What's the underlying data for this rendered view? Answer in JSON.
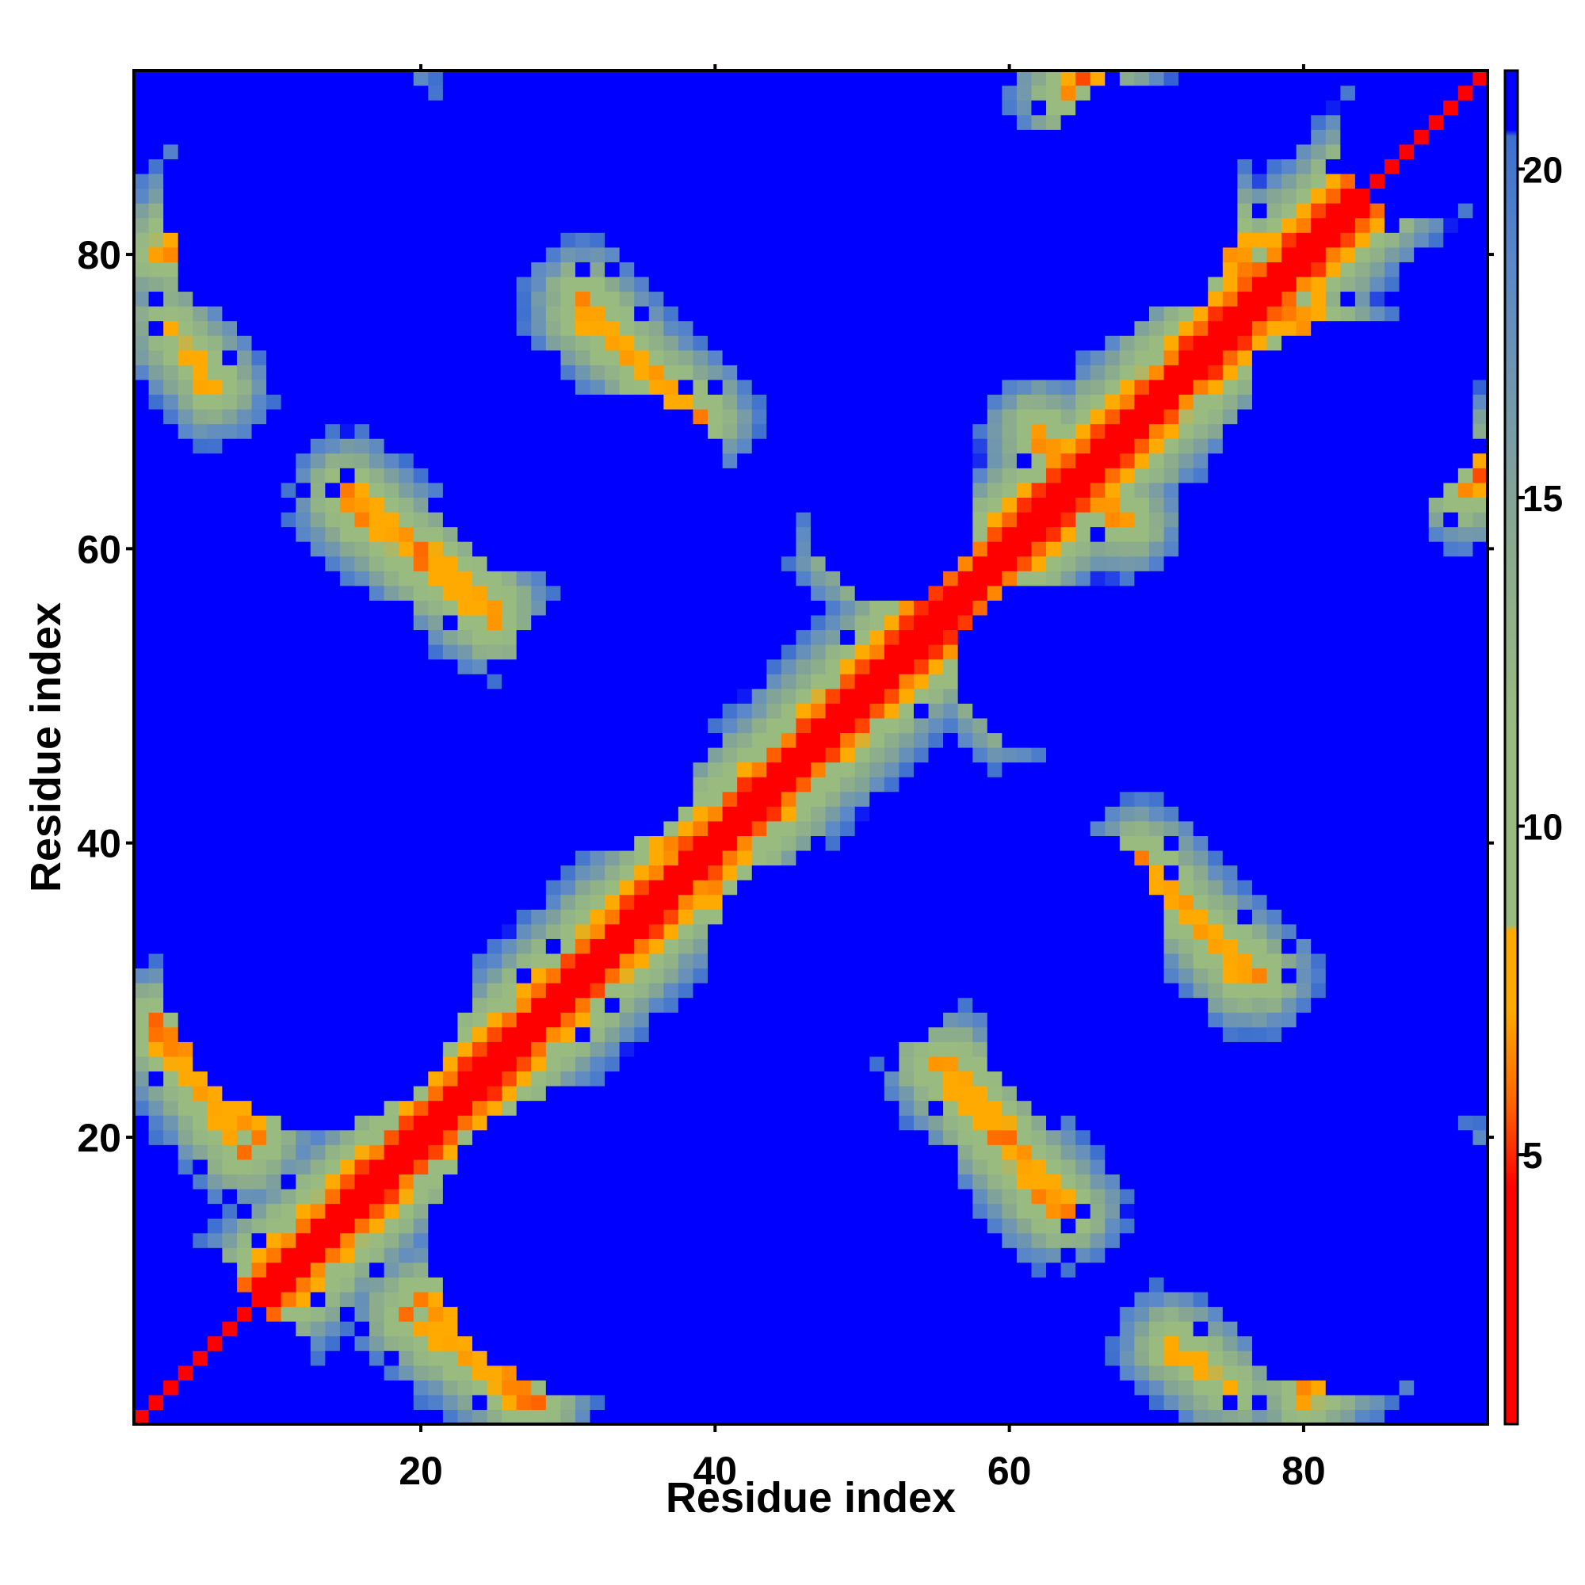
{
  "chart_data": {
    "type": "heatmap",
    "title": "",
    "xlabel": "Residue index",
    "ylabel": "Residue index",
    "n_residues": 92,
    "xlim": [
      1,
      92
    ],
    "ylim": [
      1,
      92
    ],
    "x_ticks": [
      20,
      40,
      60,
      80
    ],
    "y_ticks": [
      20,
      40,
      60,
      80
    ],
    "colorbar": {
      "ticks": [
        5,
        10,
        15,
        20
      ],
      "range": [
        0.9,
        21.5
      ],
      "stops": [
        {
          "value": 0.9,
          "color": "#ff0000"
        },
        {
          "value": 4.5,
          "color": "#ff0000"
        },
        {
          "value": 5.8,
          "color": "#ff6600"
        },
        {
          "value": 7.2,
          "color": "#ffaa00"
        },
        {
          "value": 8.4,
          "color": "#ffaa00"
        },
        {
          "value": 8.5,
          "color": "#99bb80"
        },
        {
          "value": 11.5,
          "color": "#99bb80"
        },
        {
          "value": 14.5,
          "color": "#88a890"
        },
        {
          "value": 18.5,
          "color": "#5b88c8"
        },
        {
          "value": 20.5,
          "color": "#3d6fd0"
        },
        {
          "value": 20.6,
          "color": "#0000ff"
        },
        {
          "value": 21.5,
          "color": "#0000ff"
        }
      ]
    },
    "contact_bands": [
      {
        "x1": 1,
        "y1": 1,
        "x2": 92,
        "y2": 92,
        "min": 1.0
      },
      {
        "x1": 2,
        "y1": 28,
        "x2": 9,
        "y2": 20,
        "min": 6.5
      },
      {
        "x1": 11,
        "y1": 89,
        "x2": 15,
        "y2": 93,
        "min": 6.5
      },
      {
        "x1": 3,
        "y1": 80,
        "x2": 7,
        "y2": 85,
        "min": 6.5
      },
      {
        "x1": 3,
        "y1": 75,
        "x2": 6,
        "y2": 71,
        "min": 7.0
      },
      {
        "x1": 15,
        "y1": 63,
        "x2": 25,
        "y2": 55,
        "min": 6.5
      },
      {
        "x1": 31,
        "y1": 77,
        "x2": 38,
        "y2": 69,
        "min": 6.5
      },
      {
        "x1": 19,
        "y1": 8,
        "x2": 27,
        "y2": 2,
        "min": 6.5
      },
      {
        "x1": 34,
        "y1": 42,
        "x2": 42,
        "y2": 35,
        "min": 6.5
      },
      {
        "x1": 45,
        "y1": 47,
        "x2": 47,
        "y2": 45,
        "min": 7.0
      },
      {
        "x1": 49,
        "y1": 60,
        "x2": 56,
        "y2": 53,
        "min": 6.8
      },
      {
        "x1": 56,
        "y1": 25,
        "x2": 64,
        "y2": 15,
        "min": 6.5
      },
      {
        "x1": 62,
        "y1": 67,
        "x2": 68,
        "y2": 62,
        "min": 6.5
      },
      {
        "x1": 64,
        "y1": 93,
        "x2": 78,
        "y2": 78,
        "min": 6.0
      },
      {
        "x1": 77,
        "y1": 78,
        "x2": 91,
        "y2": 64,
        "min": 6.0
      },
      {
        "x1": 69,
        "y1": 39,
        "x2": 76,
        "y2": 31,
        "min": 6.5
      },
      {
        "x1": 84,
        "y1": 12,
        "x2": 91,
        "y2": 17,
        "min": 6.8
      },
      {
        "x1": 80,
        "y1": 2,
        "x2": 85,
        "y2": 6,
        "min": 6.8
      }
    ],
    "void_regions": [
      {
        "cx": 15,
        "cy": 81,
        "rx": 10,
        "ry": 7
      },
      {
        "cx": 61,
        "cy": 81,
        "rx": 10,
        "ry": 7
      },
      {
        "cx": 33,
        "cy": 64,
        "rx": 7,
        "ry": 6
      },
      {
        "cx": 84,
        "cy": 69,
        "rx": 7,
        "ry": 6
      },
      {
        "cx": 31,
        "cy": 46,
        "rx": 7,
        "ry": 6
      },
      {
        "cx": 16,
        "cy": 53,
        "rx": 4,
        "ry": 3.5
      },
      {
        "cx": 63,
        "cy": 52,
        "rx": 6,
        "ry": 5
      },
      {
        "cx": 84,
        "cy": 50,
        "rx": 6,
        "ry": 5
      },
      {
        "cx": 12,
        "cy": 32,
        "rx": 7,
        "ry": 6
      },
      {
        "cx": 58,
        "cy": 37,
        "rx": 7,
        "ry": 6
      },
      {
        "cx": 49,
        "cy": 30,
        "rx": 6,
        "ry": 4
      },
      {
        "cx": 31,
        "cy": 13,
        "rx": 9,
        "ry": 9
      },
      {
        "cx": 52,
        "cy": 13,
        "rx": 5,
        "ry": 5
      },
      {
        "cx": 84,
        "cy": 13,
        "rx": 9,
        "ry": 9
      },
      {
        "cx": 65,
        "cy": 27,
        "rx": 6,
        "ry": 5
      },
      {
        "cx": 45,
        "cy": 88,
        "rx": 6,
        "ry": 4
      },
      {
        "cx": 88,
        "cy": 88,
        "rx": 5,
        "ry": 5
      },
      {
        "cx": 6,
        "cy": 4,
        "rx": 6,
        "ry": 4
      },
      {
        "cx": 3,
        "cy": 62,
        "rx": 3,
        "ry": 4
      }
    ]
  }
}
